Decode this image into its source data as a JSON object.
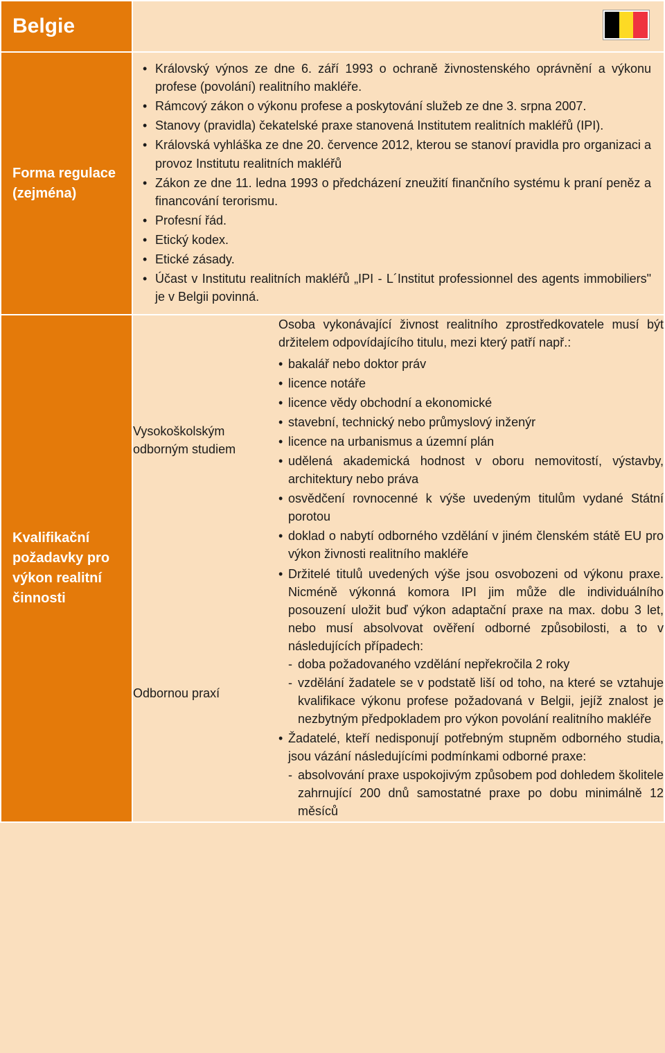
{
  "header": {
    "country": "Belgie"
  },
  "row1": {
    "label": "Forma regulace (zejména)",
    "bullets": [
      "Královský výnos ze dne 6. září 1993 o ochraně živnostenského oprávnění a výkonu profese (povolání) realitního makléře.",
      "Rámcový zákon o výkonu profese a poskytování služeb ze dne 3. srpna 2007.",
      "Stanovy (pravidla) čekatelské praxe stanovená Institutem realitních makléřů (IPI).",
      "Královská vyhláška ze dne 20. července 2012, kterou se stanoví pravidla pro organizaci a provoz Institutu realitních makléřů",
      "Zákon ze dne 11. ledna 1993 o předcházení zneužití finančního systému k praní peněz a financování terorismu.",
      "Profesní řád.",
      "Etický kodex.",
      "Etické zásady.",
      "Účast v Institutu realitních makléřů „IPI - L´Institut professionnel des agents immobiliers\" je v Belgii povinná."
    ]
  },
  "row2": {
    "label": "Kvalifikační požadavky pro výkon realitní činnosti",
    "edu": {
      "sublabel": "Vysokoškolským odborným studiem",
      "intro": "Osoba vykonávající živnost realitního zprostředkovatele musí být držitelem odpovídajícího titulu, mezi který patří např.:",
      "items": [
        "bakalář nebo doktor práv",
        "licence notáře",
        "licence vědy obchodní a ekonomické",
        "stavební, technický nebo průmyslový inženýr",
        "licence na urbanismus a územní plán",
        "udělená akademická hodnost v oboru nemovitostí, výstavby, architektury nebo práva",
        "osvědčení rovnocenné k výše uvedeným titulům vydané Státní porotou",
        "doklad o nabytí odborného vzdělání v jiném členském státě EU pro výkon živnosti realitního makléře"
      ]
    },
    "prax": {
      "sublabel": "Odbornou praxí",
      "item1_pre": "Držitelé titulů uvedených výše jsou osvobozeni od výkonu praxe. Nicméně výkonná komora IPI jim může dle individuálního posouzení uložit buď výkon adaptační praxe na max. dobu 3 let, nebo musí absolvovat ověření odborné způsobilosti, a to v následujících případech:",
      "item1_dashes": [
        "doba požadovaného vzdělání nepřekročila 2 roky",
        "vzdělání žadatele se v podstatě liší od toho, na které se vztahuje kvalifikace výkonu profese požadovaná v Belgii, jejíž znalost je nezbytným předpokladem pro výkon povolání realitního makléře"
      ],
      "item2_pre": "Žadatelé, kteří nedisponují potřebným stupněm odborného studia, jsou vázání následujícími podmínkami odborné praxe:",
      "item2_dashes": [
        "absolvování praxe uspokojivým způsobem pod dohledem školitele zahrnující 200 dnů samostatné praxe po dobu minimálně 12 měsíců"
      ]
    }
  }
}
